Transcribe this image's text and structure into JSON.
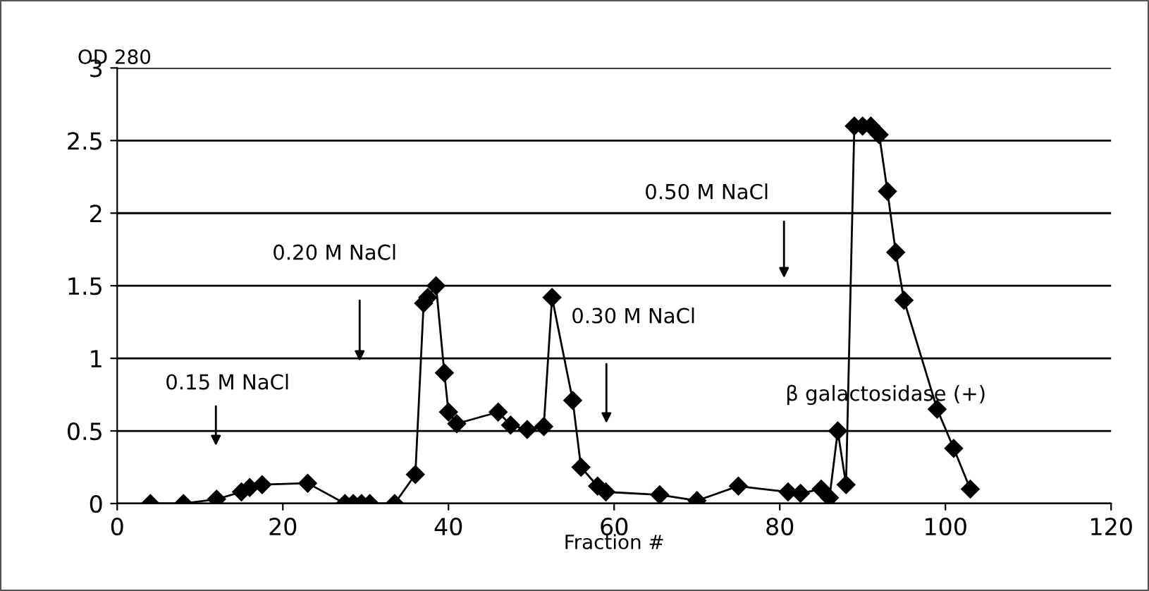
{
  "chart_data": {
    "type": "line",
    "ylabel": "OD 280",
    "xlabel": "Fraction #",
    "marker": "diamond",
    "grid": "y",
    "xlim": [
      0,
      120
    ],
    "xticks": [
      0,
      20,
      40,
      60,
      80,
      100,
      120
    ],
    "ylim": [
      0,
      3
    ],
    "yticks": [
      0,
      0.5,
      1,
      1.5,
      2,
      2.5,
      3
    ],
    "series": [
      {
        "color": "#000000",
        "x": [
          4,
          8,
          12,
          15,
          16,
          17.5,
          23,
          27.5,
          28.5,
          29.5,
          30.5,
          33.5,
          36,
          37,
          37.5,
          38.5,
          39.5,
          40,
          41,
          46,
          47.5,
          49.5,
          51.5,
          52.5,
          55,
          56,
          58,
          59,
          65.5,
          70,
          75,
          81,
          82.5,
          85,
          86,
          87,
          88,
          89,
          90,
          91,
          92,
          93,
          94,
          95,
          99,
          101,
          103
        ],
        "values": [
          0,
          0,
          0.03,
          0.08,
          0.11,
          0.13,
          0.14,
          0,
          0,
          0,
          0,
          0,
          0.2,
          1.38,
          1.42,
          1.5,
          0.9,
          0.63,
          0.55,
          0.63,
          0.54,
          0.51,
          0.53,
          1.42,
          0.71,
          0.25,
          0.12,
          0.08,
          0.06,
          0.02,
          0.12,
          0.08,
          0.07,
          0.1,
          0.04,
          0.5,
          0.13,
          2.6,
          2.6,
          2.6,
          2.54,
          2.15,
          1.73,
          1.4,
          0.65,
          0.38,
          0.1
        ]
      }
    ],
    "annotations": [
      "0.15 M NaCl",
      "0.20 M NaCl",
      "0.30 M NaCl",
      "0.50 M NaCl",
      "β galactosidase (+)"
    ]
  }
}
